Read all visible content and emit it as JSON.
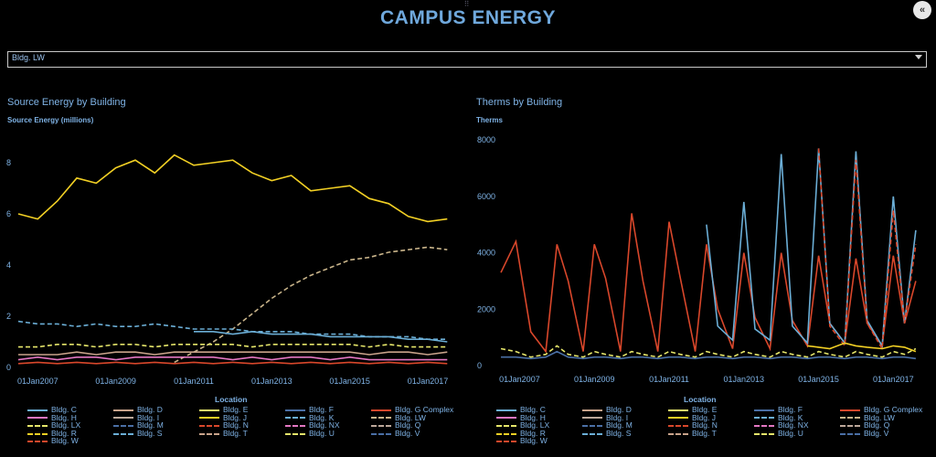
{
  "header": {
    "title": "CAMPUS ENERGY",
    "grip": "⠿",
    "collapse_label": "«"
  },
  "filter": {
    "selected": "Bldg. LW"
  },
  "charts": [
    {
      "title": "Source Energy by Building",
      "ylabel": "Source Energy (millions)",
      "y_ticks": [
        "0",
        "2",
        "4",
        "6",
        "8"
      ],
      "x_ticks": [
        "01Jan2007",
        "01Jan2009",
        "01Jan2011",
        "01Jan2013",
        "01Jan2015",
        "01Jan2017"
      ]
    },
    {
      "title": "Therms by Building",
      "ylabel": "Therms",
      "y_ticks": [
        "0",
        "2000",
        "4000",
        "6000",
        "8000"
      ],
      "x_ticks": [
        "01Jan2007",
        "01Jan2009",
        "01Jan2011",
        "01Jan2013",
        "01Jan2015",
        "01Jan2017"
      ]
    }
  ],
  "legend_title": "Location",
  "legend_items": [
    {
      "name": "Bldg. C",
      "color": "#6baed6",
      "dash": ""
    },
    {
      "name": "Bldg. D",
      "color": "#c9a38a",
      "dash": ""
    },
    {
      "name": "Bldg. E",
      "color": "#e6e66a",
      "dash": ""
    },
    {
      "name": "Bldg. F",
      "color": "#4a6fa5",
      "dash": ""
    },
    {
      "name": "Bldg. G Complex",
      "color": "#d9472b",
      "dash": ""
    },
    {
      "name": "Bldg. H",
      "color": "#e377c2",
      "dash": ""
    },
    {
      "name": "Bldg. I",
      "color": "#bda89a",
      "dash": ""
    },
    {
      "name": "Bldg. J",
      "color": "#f2d024",
      "dash": ""
    },
    {
      "name": "Bldg. K",
      "color": "#6baed6",
      "dash": "5,3"
    },
    {
      "name": "Bldg. LW",
      "color": "#c9b48a",
      "dash": "5,3"
    },
    {
      "name": "Bldg. LX",
      "color": "#e6e66a",
      "dash": "5,3"
    },
    {
      "name": "Bldg. M",
      "color": "#4a6fa5",
      "dash": "5,3"
    },
    {
      "name": "Bldg. N",
      "color": "#d9472b",
      "dash": "5,3"
    },
    {
      "name": "Bldg. NX",
      "color": "#e377c2",
      "dash": "5,3"
    },
    {
      "name": "Bldg. Q",
      "color": "#bda89a",
      "dash": "5,3"
    },
    {
      "name": "Bldg. R",
      "color": "#f2d024",
      "dash": "5,3"
    },
    {
      "name": "Bldg. S",
      "color": "#6baed6",
      "dash": "6,2,2,2"
    },
    {
      "name": "Bldg. T",
      "color": "#c9a38a",
      "dash": "6,2,2,2"
    },
    {
      "name": "Bldg. U",
      "color": "#e6e66a",
      "dash": "6,2,2,2"
    },
    {
      "name": "Bldg. V",
      "color": "#4a6fa5",
      "dash": "6,2,2,2"
    },
    {
      "name": "Bldg. W",
      "color": "#d9472b",
      "dash": "6,2,2,2"
    }
  ],
  "chart_data": [
    {
      "type": "line",
      "title": "Source Energy by Building",
      "ylabel": "Source Energy (millions)",
      "xlabel": "",
      "x_range": [
        "2006-07",
        "2017-09"
      ],
      "ylim": [
        0,
        9
      ],
      "x": [
        2006.5,
        2007.0,
        2007.5,
        2008.0,
        2008.5,
        2009.0,
        2009.5,
        2010.0,
        2010.5,
        2011.0,
        2011.5,
        2012.0,
        2012.5,
        2013.0,
        2013.5,
        2014.0,
        2014.5,
        2015.0,
        2015.5,
        2016.0,
        2016.5,
        2017.0,
        2017.5
      ],
      "series": [
        {
          "name": "Bldg. J",
          "values": [
            6.0,
            5.8,
            6.5,
            7.4,
            7.2,
            7.8,
            8.1,
            7.6,
            8.3,
            7.9,
            8.0,
            8.1,
            7.6,
            7.3,
            7.5,
            6.9,
            7.0,
            7.1,
            6.6,
            6.4,
            5.9,
            5.7,
            5.8
          ]
        },
        {
          "name": "Bldg. LW",
          "values": [
            null,
            null,
            null,
            null,
            null,
            null,
            null,
            null,
            0.2,
            0.6,
            1.0,
            1.5,
            2.1,
            2.7,
            3.2,
            3.6,
            3.9,
            4.2,
            4.3,
            4.5,
            4.6,
            4.7,
            4.6
          ]
        },
        {
          "name": "Bldg. K",
          "values": [
            1.8,
            1.7,
            1.7,
            1.6,
            1.7,
            1.6,
            1.6,
            1.7,
            1.6,
            1.5,
            1.5,
            1.5,
            1.4,
            1.4,
            1.4,
            1.3,
            1.3,
            1.3,
            1.2,
            1.2,
            1.2,
            1.1,
            1.1
          ]
        },
        {
          "name": "Bldg. C",
          "values": [
            null,
            null,
            null,
            null,
            null,
            null,
            null,
            null,
            null,
            1.4,
            1.4,
            1.3,
            1.4,
            1.3,
            1.3,
            1.3,
            1.2,
            1.2,
            1.2,
            1.2,
            1.1,
            1.1,
            1.0
          ]
        },
        {
          "name": "Bldg. LX",
          "values": [
            0.8,
            0.8,
            0.9,
            0.9,
            0.8,
            0.9,
            0.9,
            0.8,
            0.9,
            0.9,
            0.9,
            0.9,
            0.8,
            0.9,
            0.9,
            0.9,
            0.9,
            0.9,
            0.8,
            0.9,
            0.8,
            0.8,
            0.8
          ]
        },
        {
          "name": "Bldg. D",
          "values": [
            0.5,
            0.5,
            0.5,
            0.6,
            0.5,
            0.6,
            0.6,
            0.5,
            0.6,
            0.6,
            0.6,
            0.6,
            0.6,
            0.6,
            0.6,
            0.6,
            0.6,
            0.6,
            0.5,
            0.6,
            0.6,
            0.5,
            0.6
          ]
        },
        {
          "name": "Bldg. H",
          "values": [
            0.3,
            0.4,
            0.3,
            0.4,
            0.4,
            0.3,
            0.4,
            0.4,
            0.4,
            0.4,
            0.4,
            0.3,
            0.4,
            0.3,
            0.4,
            0.4,
            0.3,
            0.4,
            0.3,
            0.3,
            0.3,
            0.3,
            0.3
          ]
        },
        {
          "name": "Bldg. G Complex",
          "values": [
            0.15,
            0.2,
            0.15,
            0.2,
            0.15,
            0.2,
            0.15,
            0.2,
            0.15,
            0.2,
            0.15,
            0.2,
            0.15,
            0.2,
            0.15,
            0.2,
            0.15,
            0.2,
            0.15,
            0.2,
            0.15,
            0.2,
            0.15
          ]
        }
      ]
    },
    {
      "type": "line",
      "title": "Therms by Building",
      "ylabel": "Therms",
      "xlabel": "",
      "x_range": [
        "2006-07",
        "2017-09"
      ],
      "ylim": [
        0,
        8200
      ],
      "x": [
        2006.5,
        2006.9,
        2007.3,
        2007.7,
        2008.0,
        2008.3,
        2008.7,
        2009.0,
        2009.3,
        2009.7,
        2010.0,
        2010.3,
        2010.7,
        2011.0,
        2011.3,
        2011.7,
        2012.0,
        2012.3,
        2012.7,
        2013.0,
        2013.3,
        2013.7,
        2014.0,
        2014.3,
        2014.7,
        2015.0,
        2015.3,
        2015.7,
        2016.0,
        2016.3,
        2016.7,
        2017.0,
        2017.3,
        2017.6
      ],
      "series": [
        {
          "name": "Bldg. G Complex",
          "values": [
            3300,
            4400,
            1200,
            500,
            4300,
            3000,
            500,
            4300,
            3100,
            500,
            5400,
            3000,
            500,
            5100,
            3100,
            500,
            4300,
            2000,
            600,
            4000,
            1700,
            600,
            4000,
            1600,
            700,
            3900,
            1500,
            800,
            3800,
            1500,
            700,
            3900,
            1500,
            3000
          ]
        },
        {
          "name": "Bldg. C",
          "values": [
            null,
            null,
            null,
            null,
            null,
            null,
            null,
            null,
            null,
            null,
            null,
            null,
            null,
            null,
            null,
            null,
            5000,
            1400,
            900,
            5800,
            1300,
            900,
            7500,
            1400,
            800,
            7700,
            1500,
            800,
            7600,
            1600,
            700,
            6000,
            1500,
            4800
          ]
        },
        {
          "name": "Bldg. N",
          "values": [
            null,
            null,
            null,
            null,
            null,
            null,
            null,
            null,
            null,
            null,
            null,
            null,
            null,
            null,
            null,
            null,
            null,
            null,
            null,
            null,
            null,
            null,
            null,
            null,
            null,
            7700,
            1400,
            700,
            7300,
            1500,
            600,
            5500,
            1500,
            4300
          ]
        },
        {
          "name": "Bldg. LX",
          "values": [
            600,
            500,
            300,
            400,
            700,
            400,
            300,
            500,
            400,
            300,
            500,
            400,
            300,
            500,
            400,
            300,
            500,
            400,
            300,
            500,
            400,
            300,
            500,
            400,
            300,
            500,
            400,
            300,
            500,
            400,
            300,
            500,
            400,
            600
          ]
        },
        {
          "name": "Bldg. J",
          "values": [
            null,
            null,
            null,
            null,
            null,
            null,
            null,
            null,
            null,
            null,
            null,
            null,
            null,
            null,
            null,
            null,
            null,
            null,
            null,
            null,
            null,
            null,
            null,
            null,
            700,
            650,
            600,
            800,
            700,
            650,
            600,
            700,
            650,
            500
          ]
        },
        {
          "name": "Bldg. F",
          "values": [
            300,
            300,
            250,
            300,
            500,
            300,
            250,
            300,
            300,
            250,
            300,
            300,
            250,
            300,
            300,
            250,
            300,
            300,
            250,
            300,
            300,
            250,
            300,
            300,
            250,
            300,
            300,
            250,
            300,
            300,
            250,
            300,
            300,
            250
          ]
        }
      ]
    }
  ]
}
